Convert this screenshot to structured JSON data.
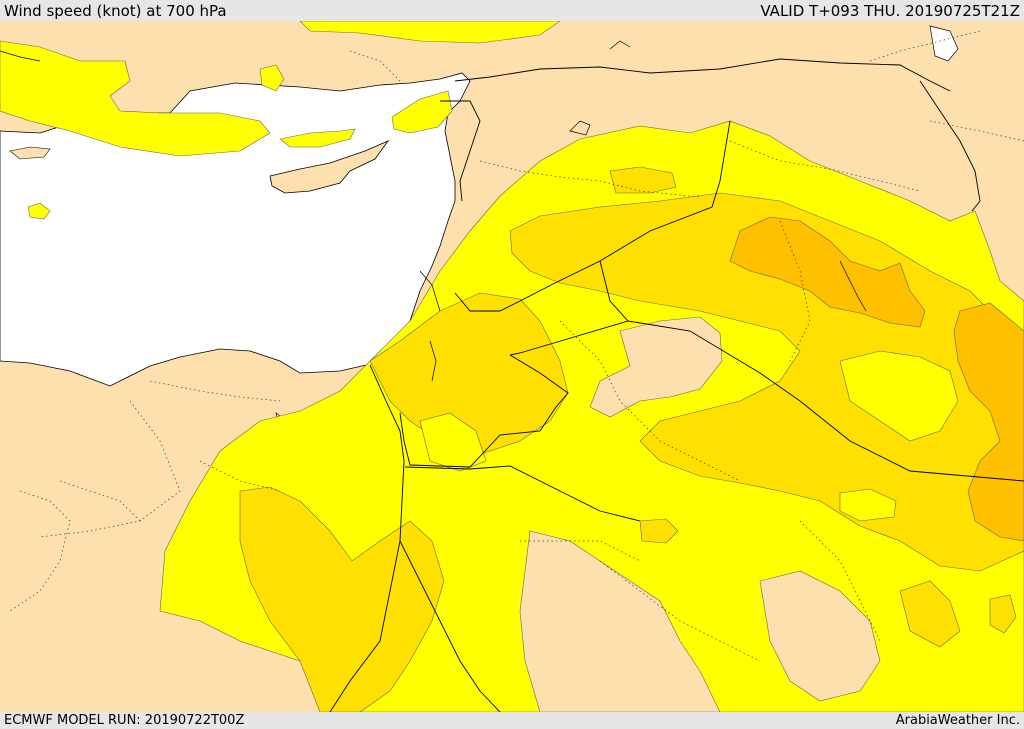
{
  "header": {
    "title": "Wind speed (knot) at 700 hPa",
    "valid": "VALID T+093 THU. 20190725T21Z"
  },
  "footer": {
    "model_run": "ECMWF MODEL RUN: 20190722T00Z",
    "credit": "ArabiaWeather Inc."
  },
  "colors": {
    "land": "#fde0ae",
    "sea": "#ffffff",
    "wind_band_1": "#ffff00",
    "wind_band_2": "#ffe000",
    "wind_band_3": "#ffc000",
    "border": "#000000"
  }
}
